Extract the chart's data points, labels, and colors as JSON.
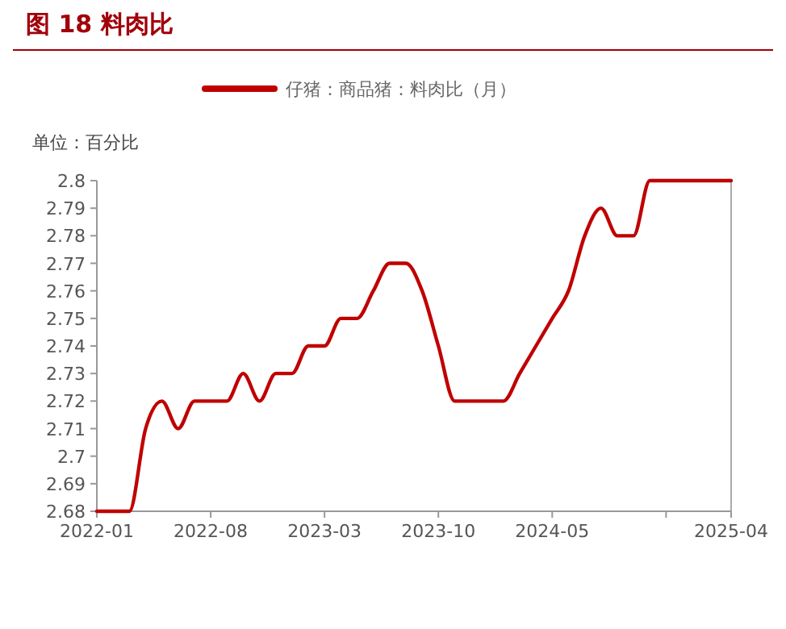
{
  "chart_data": {
    "type": "line",
    "title": "图 18 料肉比",
    "ylabel": "单位：百分比",
    "x": [
      "2022-01",
      "2022-02",
      "2022-03",
      "2022-04",
      "2022-05",
      "2022-06",
      "2022-07",
      "2022-08",
      "2022-09",
      "2022-10",
      "2022-11",
      "2022-12",
      "2023-01",
      "2023-02",
      "2023-03",
      "2023-04",
      "2023-05",
      "2023-06",
      "2023-07",
      "2023-08",
      "2023-09",
      "2023-10",
      "2023-11",
      "2023-12",
      "2024-01",
      "2024-02",
      "2024-03",
      "2024-04",
      "2024-05",
      "2024-06",
      "2024-07",
      "2024-08",
      "2024-09",
      "2024-10",
      "2024-11",
      "2024-12",
      "2025-01",
      "2025-02",
      "2025-03",
      "2025-04"
    ],
    "series": [
      {
        "name": "仔猪：商品猪：料肉比（月）",
        "color": "#c00000",
        "values": [
          2.68,
          2.68,
          2.68,
          2.71,
          2.72,
          2.71,
          2.72,
          2.72,
          2.72,
          2.73,
          2.72,
          2.73,
          2.73,
          2.74,
          2.74,
          2.75,
          2.75,
          2.76,
          2.77,
          2.77,
          2.76,
          2.74,
          2.72,
          2.72,
          2.72,
          2.72,
          2.73,
          2.74,
          2.75,
          2.76,
          2.78,
          2.79,
          2.78,
          2.78,
          2.8,
          2.8,
          2.8,
          2.8,
          2.8,
          2.8
        ]
      }
    ],
    "xlim": [
      "2022-01",
      "2025-04"
    ],
    "xticks": [
      "2022-01",
      "2022-08",
      "2023-03",
      "2023-10",
      "2024-05",
      {
        "value": "2024-12",
        "label": null
      },
      "2025-04"
    ],
    "ylim": [
      2.68,
      2.8
    ],
    "yticks": [
      2.68,
      2.69,
      2.7,
      2.71,
      2.72,
      2.73,
      2.74,
      2.75,
      2.76,
      2.77,
      2.78,
      2.79,
      2.8
    ],
    "legend": "top",
    "grid": false,
    "marker": "none",
    "line_style": "solid"
  }
}
